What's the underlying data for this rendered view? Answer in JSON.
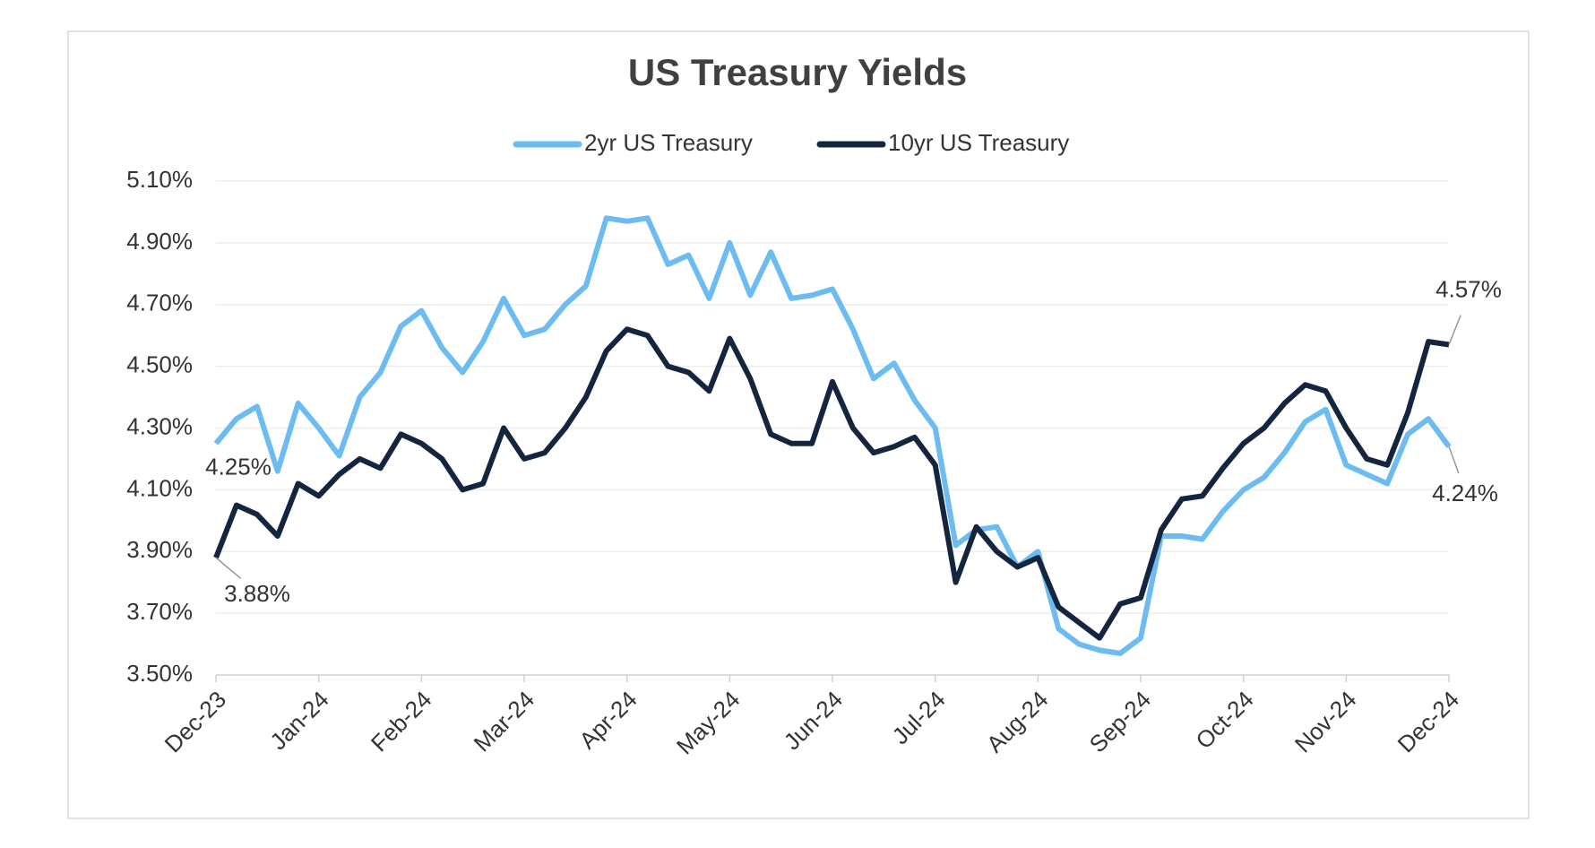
{
  "chart_data": {
    "type": "line",
    "title": "US Treasury Yields",
    "categories": [
      "Dec-23",
      null,
      null,
      null,
      null,
      "Jan-24",
      null,
      null,
      null,
      null,
      "Feb-24",
      null,
      null,
      null,
      null,
      "Mar-24",
      null,
      null,
      null,
      null,
      "Apr-24",
      null,
      null,
      null,
      null,
      "May-24",
      null,
      null,
      null,
      null,
      "Jun-24",
      null,
      null,
      null,
      null,
      "Jul-24",
      null,
      null,
      null,
      null,
      "Aug-24",
      null,
      null,
      null,
      null,
      "Sep-24",
      null,
      null,
      null,
      null,
      "Oct-24",
      null,
      null,
      null,
      null,
      "Nov-24",
      null,
      null,
      null,
      null,
      "Dec-24"
    ],
    "series": [
      {
        "name": "2yr US Treasury",
        "color": "#6cbcf2",
        "values": [
          4.25,
          4.33,
          4.37,
          4.16,
          4.38,
          4.3,
          4.21,
          4.4,
          4.48,
          4.63,
          4.68,
          4.56,
          4.48,
          4.58,
          4.72,
          4.6,
          4.62,
          4.7,
          4.76,
          4.98,
          4.97,
          4.98,
          4.83,
          4.86,
          4.72,
          4.9,
          4.73,
          4.87,
          4.72,
          4.73,
          4.75,
          4.62,
          4.46,
          4.51,
          4.39,
          4.3,
          3.92,
          3.97,
          3.98,
          3.85,
          3.9,
          3.65,
          3.6,
          3.58,
          3.57,
          3.62,
          3.95,
          3.95,
          3.94,
          4.03,
          4.1,
          4.14,
          4.22,
          4.32,
          4.36,
          4.18,
          4.15,
          4.12,
          4.28,
          4.33,
          4.24
        ],
        "value_labels": [
          "4.25%",
          null,
          null,
          null,
          null,
          null,
          null,
          null,
          null,
          null,
          null,
          null,
          null,
          null,
          null,
          null,
          null,
          null,
          null,
          null,
          null,
          null,
          null,
          null,
          null,
          null,
          null,
          null,
          null,
          null,
          null,
          null,
          null,
          null,
          null,
          null,
          null,
          null,
          null,
          null,
          null,
          null,
          null,
          null,
          null,
          null,
          null,
          null,
          null,
          null,
          null,
          null,
          null,
          null,
          null,
          null,
          null,
          null,
          null,
          null,
          "4.24%"
        ]
      },
      {
        "name": "10yr US Treasury",
        "color": "#14263f",
        "values": [
          3.88,
          4.05,
          4.02,
          3.95,
          4.12,
          4.08,
          4.15,
          4.2,
          4.17,
          4.28,
          4.25,
          4.2,
          4.1,
          4.12,
          4.3,
          4.2,
          4.22,
          4.3,
          4.4,
          4.55,
          4.62,
          4.6,
          4.5,
          4.48,
          4.42,
          4.59,
          4.46,
          4.28,
          4.25,
          4.25,
          4.45,
          4.3,
          4.22,
          4.24,
          4.27,
          4.18,
          3.8,
          3.98,
          3.9,
          3.85,
          3.88,
          3.72,
          3.67,
          3.62,
          3.73,
          3.75,
          3.97,
          4.07,
          4.08,
          4.17,
          4.25,
          4.3,
          4.38,
          4.44,
          4.42,
          4.3,
          4.2,
          4.18,
          4.35,
          4.58,
          4.57
        ],
        "value_labels": [
          "3.88%",
          null,
          null,
          null,
          null,
          null,
          null,
          null,
          null,
          null,
          null,
          null,
          null,
          null,
          null,
          null,
          null,
          null,
          null,
          null,
          null,
          null,
          null,
          null,
          null,
          null,
          null,
          null,
          null,
          null,
          null,
          null,
          null,
          null,
          null,
          null,
          null,
          null,
          null,
          null,
          null,
          null,
          null,
          null,
          null,
          null,
          null,
          null,
          null,
          null,
          null,
          null,
          null,
          null,
          null,
          null,
          null,
          null,
          null,
          null,
          "4.57%"
        ]
      }
    ],
    "ylim": [
      3.5,
      5.1
    ],
    "yticks": [
      {
        "value": 3.5,
        "label": "3.50%"
      },
      {
        "value": 3.7,
        "label": "3.70%"
      },
      {
        "value": 3.9,
        "label": "3.90%"
      },
      {
        "value": 4.1,
        "label": "4.10%"
      },
      {
        "value": 4.3,
        "label": "4.30%"
      },
      {
        "value": 4.5,
        "label": "4.50%"
      },
      {
        "value": 4.7,
        "label": "4.70%"
      },
      {
        "value": 4.9,
        "label": "4.90%"
      },
      {
        "value": 5.1,
        "label": "5.10%"
      }
    ],
    "grid": true,
    "legend": "top"
  }
}
